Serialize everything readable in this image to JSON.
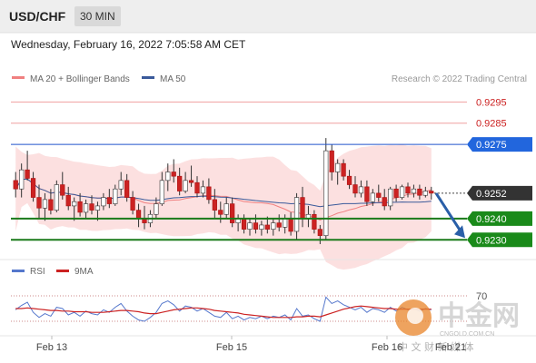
{
  "header": {
    "symbol": "USD/CHF",
    "timeframe": "30 MIN"
  },
  "datetime": "Wednesday, February 16, 2022 7:05:58 AM CET",
  "legend": {
    "ma20_label": "MA 20 + Bollinger Bands",
    "ma50_label": "MA 50",
    "credit": "Research © 2022 Trading Central",
    "ma20_color": "#f08080",
    "ma50_color": "#3a5a9a"
  },
  "rsi_legend": {
    "rsi_label": "RSI",
    "ma_label": "9MA",
    "rsi_color": "#5577cc",
    "ma_color": "#cc2222"
  },
  "levels": [
    {
      "value": "0.9295",
      "style": "resistance-light"
    },
    {
      "value": "0.9285",
      "style": "resistance-light"
    },
    {
      "value": "0.9275",
      "style": "pivot"
    },
    {
      "value": "0.9252",
      "style": "current"
    },
    {
      "value": "0.9240",
      "style": "support"
    },
    {
      "value": "0.9230",
      "style": "support"
    }
  ],
  "watermark": {
    "brand": "中金网",
    "url": "CNGOLD.COM.CN",
    "tagline": "中 文 财 新 媒 体"
  },
  "chart_data": [
    {
      "type": "candlestick",
      "y_range": [
        0.9225,
        0.9302
      ],
      "x_ticks": [
        "Feb 13",
        "Feb 15",
        "Feb 16"
      ],
      "x_tick_last": "Feb 21",
      "candles": [
        [
          0.9258,
          0.9262,
          0.925,
          0.9254
        ],
        [
          0.9254,
          0.9266,
          0.925,
          0.9263
        ],
        [
          0.9263,
          0.9272,
          0.9258,
          0.9259
        ],
        [
          0.9259,
          0.9262,
          0.9248,
          0.925
        ],
        [
          0.925,
          0.9256,
          0.924,
          0.9245
        ],
        [
          0.9245,
          0.9252,
          0.9239,
          0.9249
        ],
        [
          0.9249,
          0.9254,
          0.9242,
          0.9244
        ],
        [
          0.9244,
          0.9258,
          0.9243,
          0.9256
        ],
        [
          0.9256,
          0.9262,
          0.9249,
          0.9251
        ],
        [
          0.9251,
          0.9255,
          0.9244,
          0.9246
        ],
        [
          0.9246,
          0.925,
          0.9239,
          0.9248
        ],
        [
          0.9248,
          0.9252,
          0.9241,
          0.9243
        ],
        [
          0.9243,
          0.9249,
          0.924,
          0.9247
        ],
        [
          0.9247,
          0.9251,
          0.9242,
          0.9244
        ],
        [
          0.9244,
          0.9248,
          0.9239,
          0.9246
        ],
        [
          0.9246,
          0.9252,
          0.9244,
          0.925
        ],
        [
          0.925,
          0.9254,
          0.9245,
          0.9247
        ],
        [
          0.9247,
          0.9256,
          0.9246,
          0.9254
        ],
        [
          0.9254,
          0.9262,
          0.9251,
          0.9258
        ],
        [
          0.9258,
          0.9261,
          0.9248,
          0.925
        ],
        [
          0.925,
          0.9253,
          0.9242,
          0.9244
        ],
        [
          0.9244,
          0.9247,
          0.9236,
          0.924
        ],
        [
          0.924,
          0.9246,
          0.9235,
          0.9238
        ],
        [
          0.9238,
          0.9244,
          0.9236,
          0.9242
        ],
        [
          0.9242,
          0.925,
          0.924,
          0.9247
        ],
        [
          0.9247,
          0.9262,
          0.9246,
          0.9258
        ],
        [
          0.9258,
          0.9266,
          0.9253,
          0.9262
        ],
        [
          0.9262,
          0.9268,
          0.9257,
          0.926
        ],
        [
          0.926,
          0.9264,
          0.9251,
          0.9253
        ],
        [
          0.9253,
          0.9262,
          0.9252,
          0.9258
        ],
        [
          0.9258,
          0.9265,
          0.9255,
          0.9257
        ],
        [
          0.9257,
          0.926,
          0.925,
          0.9252
        ],
        [
          0.9252,
          0.9258,
          0.925,
          0.9255
        ],
        [
          0.9255,
          0.9259,
          0.9247,
          0.9249
        ],
        [
          0.9249,
          0.9254,
          0.924,
          0.9244
        ],
        [
          0.9244,
          0.9248,
          0.9238,
          0.9242
        ],
        [
          0.9242,
          0.925,
          0.924,
          0.9247
        ],
        [
          0.9247,
          0.925,
          0.9236,
          0.9238
        ],
        [
          0.9238,
          0.9242,
          0.9234,
          0.924
        ],
        [
          0.924,
          0.9242,
          0.9233,
          0.9235
        ],
        [
          0.9235,
          0.924,
          0.9232,
          0.9238
        ],
        [
          0.9238,
          0.9242,
          0.9233,
          0.9235
        ],
        [
          0.9235,
          0.9239,
          0.9232,
          0.9237
        ],
        [
          0.9237,
          0.9241,
          0.9233,
          0.9235
        ],
        [
          0.9235,
          0.924,
          0.9232,
          0.9238
        ],
        [
          0.9238,
          0.9242,
          0.9234,
          0.9236
        ],
        [
          0.9236,
          0.9242,
          0.9233,
          0.924
        ],
        [
          0.924,
          0.9243,
          0.9232,
          0.9234
        ],
        [
          0.9234,
          0.9252,
          0.923,
          0.925
        ],
        [
          0.925,
          0.9255,
          0.9236,
          0.924
        ],
        [
          0.924,
          0.9246,
          0.9236,
          0.9242
        ],
        [
          0.9242,
          0.9244,
          0.9233,
          0.9235
        ],
        [
          0.9235,
          0.9237,
          0.9228,
          0.9232
        ],
        [
          0.9232,
          0.9278,
          0.923,
          0.9272
        ],
        [
          0.9272,
          0.9275,
          0.9258,
          0.9262
        ],
        [
          0.9262,
          0.9268,
          0.9256,
          0.9266
        ],
        [
          0.9266,
          0.9268,
          0.9258,
          0.926
        ],
        [
          0.926,
          0.9263,
          0.9254,
          0.9256
        ],
        [
          0.9256,
          0.926,
          0.925,
          0.9252
        ],
        [
          0.9252,
          0.9258,
          0.925,
          0.9255
        ],
        [
          0.9255,
          0.9258,
          0.9246,
          0.9248
        ],
        [
          0.9248,
          0.9254,
          0.9246,
          0.9252
        ],
        [
          0.9252,
          0.9256,
          0.9248,
          0.925
        ],
        [
          0.925,
          0.9254,
          0.9244,
          0.9246
        ],
        [
          0.9246,
          0.9255,
          0.9244,
          0.9254
        ],
        [
          0.9254,
          0.9256,
          0.9248,
          0.925
        ],
        [
          0.925,
          0.9256,
          0.9249,
          0.9255
        ],
        [
          0.9255,
          0.9257,
          0.925,
          0.9252
        ],
        [
          0.9252,
          0.9256,
          0.925,
          0.9254
        ],
        [
          0.9254,
          0.9256,
          0.9249,
          0.9251
        ],
        [
          0.9251,
          0.9255,
          0.925,
          0.9253
        ],
        [
          0.9253,
          0.9255,
          0.9249,
          0.9252
        ]
      ],
      "forecast_arrow": {
        "from": 0.9252,
        "to": 0.923
      }
    },
    {
      "type": "line",
      "name": "RSI",
      "y_ticks": [
        "70"
      ],
      "series": [
        {
          "name": "RSI",
          "values": [
            48,
            55,
            60,
            44,
            36,
            42,
            38,
            52,
            50,
            40,
            44,
            38,
            46,
            42,
            40,
            48,
            44,
            52,
            58,
            46,
            38,
            32,
            30,
            36,
            44,
            58,
            62,
            56,
            46,
            54,
            52,
            46,
            50,
            44,
            38,
            36,
            44,
            34,
            38,
            32,
            36,
            34,
            38,
            34,
            38,
            36,
            40,
            32,
            50,
            38,
            40,
            34,
            30,
            68,
            58,
            62,
            56,
            52,
            48,
            52,
            44,
            50,
            48,
            44,
            52,
            46,
            52,
            48,
            50,
            46,
            50,
            48
          ]
        },
        {
          "name": "9MA",
          "values": [
            50,
            50,
            51,
            50,
            49,
            48,
            47,
            47,
            46,
            46,
            45,
            45,
            45,
            44,
            44,
            44,
            45,
            46,
            47,
            47,
            46,
            45,
            43,
            42,
            42,
            44,
            46,
            48,
            49,
            50,
            51,
            51,
            50,
            49,
            47,
            46,
            45,
            44,
            43,
            41,
            40,
            39,
            38,
            37,
            36,
            36,
            36,
            36,
            37,
            37,
            38,
            38,
            37,
            40,
            43,
            46,
            49,
            51,
            53,
            54,
            53,
            52,
            51,
            50,
            50,
            49,
            49,
            49,
            49,
            49,
            49,
            49
          ]
        }
      ]
    }
  ]
}
